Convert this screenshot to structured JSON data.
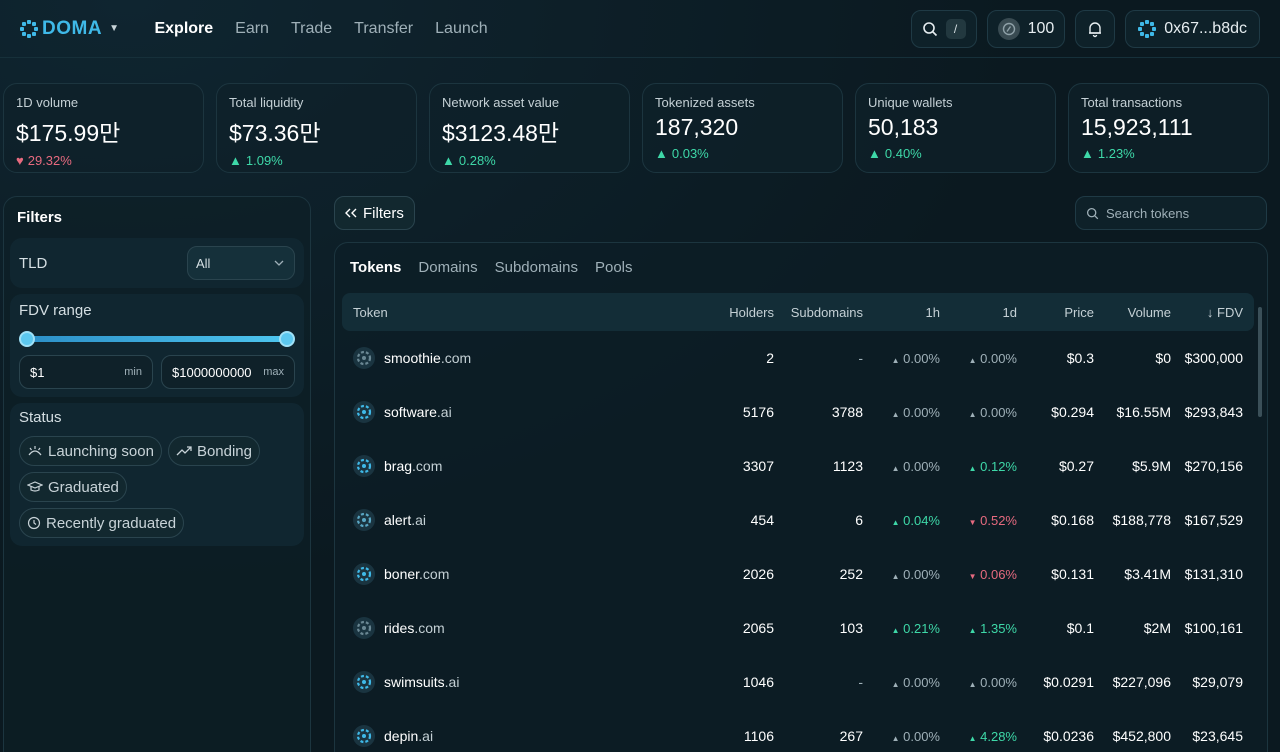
{
  "header": {
    "brand": "DOMA",
    "nav": [
      "Explore",
      "Earn",
      "Trade",
      "Transfer",
      "Launch"
    ],
    "active_nav": "Explore",
    "search_shortcut": "/",
    "points": "100",
    "wallet": "0x67...b8dc"
  },
  "stats": [
    {
      "label": "1D volume",
      "value": "$175.99만",
      "change": "29.32%",
      "direction": "down"
    },
    {
      "label": "Total liquidity",
      "value": "$73.36만",
      "change": "1.09%",
      "direction": "up"
    },
    {
      "label": "Network asset value",
      "value": "$3123.48만",
      "change": "0.28%",
      "direction": "up"
    },
    {
      "label": "Tokenized assets",
      "value": "187,320",
      "change": "0.03%",
      "direction": "up"
    },
    {
      "label": "Unique wallets",
      "value": "50,183",
      "change": "0.40%",
      "direction": "up"
    },
    {
      "label": "Total transactions",
      "value": "15,923,111",
      "change": "1.23%",
      "direction": "up"
    }
  ],
  "filters": {
    "title": "Filters",
    "tld_label": "TLD",
    "tld_value": "All",
    "fdv_label": "FDV range",
    "min_value": "$1",
    "min_suffix": "min",
    "max_value": "$1000000000",
    "max_suffix": "max",
    "status_label": "Status",
    "status_tags": [
      "Launching soon",
      "Bonding",
      "Graduated",
      "Recently graduated"
    ]
  },
  "toolbar": {
    "filters_button": "Filters",
    "search_placeholder": "Search tokens"
  },
  "tabs": [
    "Tokens",
    "Domains",
    "Subdomains",
    "Pools"
  ],
  "active_tab": "Tokens",
  "table": {
    "columns": {
      "token": "Token",
      "holders": "Holders",
      "subdomains": "Subdomains",
      "h1": "1h",
      "d1": "1d",
      "price": "Price",
      "volume": "Volume",
      "fdv": "FDV"
    },
    "rows": [
      {
        "name": "smoothie",
        "tld": ".com",
        "holders": "2",
        "subdomains": "-",
        "h1": "0.00%",
        "h1_dir": "flat",
        "d1": "0.00%",
        "d1_dir": "flat",
        "price": "$0.3",
        "volume": "$0",
        "fdv": "$300,000"
      },
      {
        "name": "software",
        "tld": ".ai",
        "holders": "5176",
        "subdomains": "3788",
        "h1": "0.00%",
        "h1_dir": "flat",
        "d1": "0.00%",
        "d1_dir": "flat",
        "price": "$0.294",
        "volume": "$16.55M",
        "fdv": "$293,843"
      },
      {
        "name": "brag",
        "tld": ".com",
        "holders": "3307",
        "subdomains": "1123",
        "h1": "0.00%",
        "h1_dir": "flat",
        "d1": "0.12%",
        "d1_dir": "up",
        "price": "$0.27",
        "volume": "$5.9M",
        "fdv": "$270,156"
      },
      {
        "name": "alert",
        "tld": ".ai",
        "holders": "454",
        "subdomains": "6",
        "h1": "0.04%",
        "h1_dir": "up",
        "d1": "0.52%",
        "d1_dir": "down",
        "price": "$0.168",
        "volume": "$188,778",
        "fdv": "$167,529"
      },
      {
        "name": "boner",
        "tld": ".com",
        "holders": "2026",
        "subdomains": "252",
        "h1": "0.00%",
        "h1_dir": "flat",
        "d1": "0.06%",
        "d1_dir": "down",
        "price": "$0.131",
        "volume": "$3.41M",
        "fdv": "$131,310"
      },
      {
        "name": "rides",
        "tld": ".com",
        "holders": "2065",
        "subdomains": "103",
        "h1": "0.21%",
        "h1_dir": "up",
        "d1": "1.35%",
        "d1_dir": "up",
        "price": "$0.1",
        "volume": "$2M",
        "fdv": "$100,161"
      },
      {
        "name": "swimsuits",
        "tld": ".ai",
        "holders": "1046",
        "subdomains": "-",
        "h1": "0.00%",
        "h1_dir": "flat",
        "d1": "0.00%",
        "d1_dir": "flat",
        "price": "$0.0291",
        "volume": "$227,096",
        "fdv": "$29,079"
      },
      {
        "name": "depin",
        "tld": ".ai",
        "holders": "1106",
        "subdomains": "267",
        "h1": "0.00%",
        "h1_dir": "flat",
        "d1": "4.28%",
        "d1_dir": "up",
        "price": "$0.0236",
        "volume": "$452,800",
        "fdv": "$23,645"
      }
    ]
  },
  "colors": {
    "accent": "#3fb9e8",
    "up": "#3ed8a8",
    "down": "#e66a7f",
    "background": "#0b1920"
  }
}
